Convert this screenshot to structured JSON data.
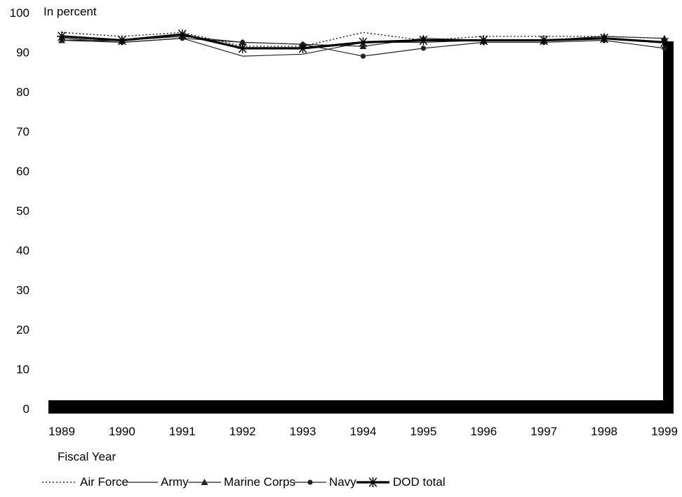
{
  "chart_data": {
    "type": "line",
    "ylabel": "In percent",
    "xlabel": "Fiscal Year",
    "ylim": [
      0,
      100
    ],
    "yticks": [
      0,
      10,
      20,
      30,
      40,
      50,
      60,
      70,
      80,
      90,
      100
    ],
    "categories": [
      "1989",
      "1990",
      "1991",
      "1992",
      "1993",
      "1994",
      "1995",
      "1996",
      "1997",
      "1998",
      "1999"
    ],
    "legend_position": "bottom",
    "grid": false,
    "series": [
      {
        "name": "Air Force",
        "style": "dotted",
        "marker": "none",
        "values": [
          95,
          94,
          95,
          91.5,
          91.5,
          95,
          93,
          94,
          94,
          94,
          93.5
        ]
      },
      {
        "name": "Army",
        "style": "solid-thin",
        "marker": "none",
        "values": [
          93,
          92.5,
          93.5,
          89,
          89.5,
          92.5,
          92.5,
          93,
          93,
          93.5,
          92.5
        ]
      },
      {
        "name": "Marine Corps",
        "style": "solid-thin",
        "marker": "triangle",
        "values": [
          93,
          93,
          94,
          92.5,
          92,
          91.5,
          93.5,
          93,
          93,
          94,
          93.5
        ]
      },
      {
        "name": "Navy",
        "style": "solid-thin",
        "marker": "circle",
        "values": [
          93.5,
          92.5,
          93.5,
          92.5,
          92,
          89,
          91,
          92.5,
          92.5,
          93,
          91
        ]
      },
      {
        "name": "DOD total",
        "style": "solid-thick",
        "marker": "asterisk",
        "values": [
          94,
          93,
          94.5,
          91,
          91,
          92.5,
          93,
          93,
          93,
          93.5,
          92.5
        ]
      }
    ]
  }
}
